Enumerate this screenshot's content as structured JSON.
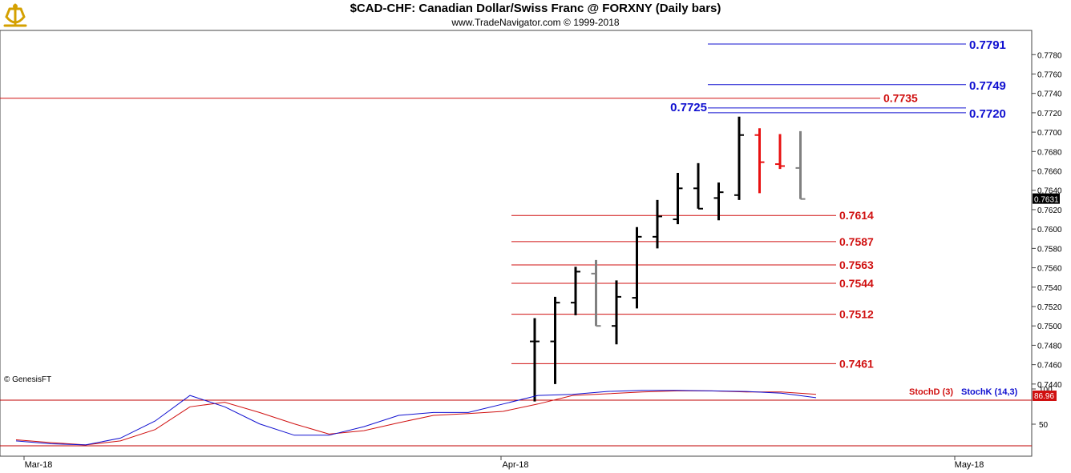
{
  "header": {
    "title": "$CAD-CHF:  Canadian Dollar/Swiss Franc @ FORXNY  (Daily bars)",
    "subtitle": "www.TradeNavigator.com © 1999-2018",
    "copyright": "© GenesisFT"
  },
  "colors": {
    "up_bar": "#000000",
    "down_bar": "#e81010",
    "neutral_bar": "#808080",
    "blue_level": "#1010d0",
    "red_level": "#d01010",
    "stoch_k": "#1010d0",
    "stoch_d": "#d01010"
  },
  "chart_data": {
    "type": "ohlc",
    "y_axis": {
      "range": [
        0.7425,
        0.7805
      ],
      "ticks": [
        "0.7440",
        "0.7460",
        "0.7480",
        "0.7500",
        "0.7520",
        "0.7540",
        "0.7560",
        "0.7580",
        "0.7600",
        "0.7620",
        "0.7640",
        "0.7660",
        "0.7680",
        "0.7700",
        "0.7720",
        "0.7740",
        "0.7760",
        "0.7780"
      ],
      "last_price": "0.7631"
    },
    "x_axis": {
      "labels": [
        "Mar-18",
        "Apr-18",
        "May-18"
      ]
    },
    "bars": [
      {
        "open": 0.7484,
        "high": 0.7508,
        "low": 0.7422,
        "close": 0.7484,
        "color": "up"
      },
      {
        "open": 0.7484,
        "high": 0.753,
        "low": 0.744,
        "close": 0.7524,
        "color": "up"
      },
      {
        "open": 0.7524,
        "high": 0.7561,
        "low": 0.7511,
        "close": 0.7556,
        "color": "up"
      },
      {
        "open": 0.7554,
        "high": 0.7568,
        "low": 0.75,
        "close": 0.75,
        "color": "neutral"
      },
      {
        "open": 0.75,
        "high": 0.7547,
        "low": 0.7481,
        "close": 0.753,
        "color": "up"
      },
      {
        "open": 0.7529,
        "high": 0.7602,
        "low": 0.7518,
        "close": 0.7592,
        "color": "up"
      },
      {
        "open": 0.7592,
        "high": 0.763,
        "low": 0.758,
        "close": 0.7613,
        "color": "up"
      },
      {
        "open": 0.761,
        "high": 0.7658,
        "low": 0.7605,
        "close": 0.7642,
        "color": "up"
      },
      {
        "open": 0.7642,
        "high": 0.7668,
        "low": 0.7621,
        "close": 0.7621,
        "color": "up"
      },
      {
        "open": 0.7632,
        "high": 0.7648,
        "low": 0.7609,
        "close": 0.7638,
        "color": "up"
      },
      {
        "open": 0.7635,
        "high": 0.7716,
        "low": 0.763,
        "close": 0.7697,
        "color": "up"
      },
      {
        "open": 0.7697,
        "high": 0.7704,
        "low": 0.7637,
        "close": 0.7669,
        "color": "down"
      },
      {
        "open": 0.7667,
        "high": 0.7698,
        "low": 0.7662,
        "close": 0.7665,
        "color": "down"
      },
      {
        "open": 0.7663,
        "high": 0.7701,
        "low": 0.7631,
        "close": 0.7631,
        "color": "neutral"
      }
    ],
    "levels": [
      {
        "value": 0.7791,
        "label": "0.7791",
        "color": "blue",
        "label_side": "right"
      },
      {
        "value": 0.7749,
        "label": "0.7749",
        "color": "blue",
        "label_side": "right"
      },
      {
        "value": 0.7735,
        "label": "0.7735",
        "color": "red",
        "label_side": "right"
      },
      {
        "value": 0.7725,
        "label": "0.7725",
        "color": "blue",
        "label_side": "left"
      },
      {
        "value": 0.772,
        "label": "0.7720",
        "color": "blue",
        "label_side": "right"
      },
      {
        "value": 0.7614,
        "label": "0.7614",
        "color": "red",
        "label_side": "right"
      },
      {
        "value": 0.7587,
        "label": "0.7587",
        "color": "red",
        "label_side": "right"
      },
      {
        "value": 0.7563,
        "label": "0.7563",
        "color": "red",
        "label_side": "right"
      },
      {
        "value": 0.7544,
        "label": "0.7544",
        "color": "red",
        "label_side": "right"
      },
      {
        "value": 0.7512,
        "label": "0.7512",
        "color": "red",
        "label_side": "right"
      },
      {
        "value": 0.7461,
        "label": "0.7461",
        "color": "red",
        "label_side": "right"
      }
    ],
    "stochastic": {
      "range": [
        0,
        100
      ],
      "ticks": [
        "50",
        "100"
      ],
      "last_value": "86.96",
      "legend": [
        {
          "name": "StochD (3)",
          "color": "red"
        },
        {
          "name": "StochK (14,3)",
          "color": "blue"
        }
      ],
      "k": [
        10,
        5,
        3,
        15,
        45,
        90,
        70,
        40,
        20,
        20,
        35,
        55,
        60,
        60,
        75,
        90,
        92,
        97,
        99,
        99,
        98,
        97,
        94,
        86
      ],
      "d": [
        12,
        7,
        3,
        10,
        30,
        70,
        78,
        60,
        40,
        22,
        28,
        42,
        55,
        58,
        62,
        75,
        90,
        93,
        96,
        98,
        98,
        96,
        96,
        92
      ]
    }
  }
}
